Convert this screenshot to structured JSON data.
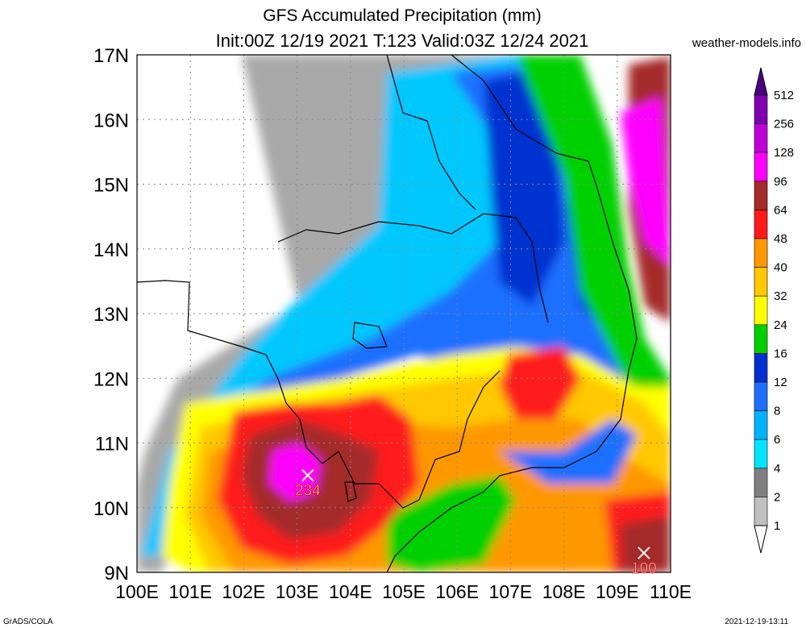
{
  "title_line1": "GFS Accumulated Precipitation (mm)",
  "title_line2": "Init:00Z 12/19 2021 T:123 Valid:03Z 12/24 2021",
  "site": "weather-models.info",
  "footer_left": "GrADS/COLA",
  "footer_right": "2021-12-19-13:11",
  "lat_labels": [
    "17N",
    "16N",
    "15N",
    "14N",
    "13N",
    "12N",
    "11N",
    "10N",
    "9N"
  ],
  "lon_labels": [
    "100E",
    "101E",
    "102E",
    "103E",
    "104E",
    "105E",
    "106E",
    "107E",
    "108E",
    "109E",
    "110E"
  ],
  "colorbar": {
    "levels": [
      "1",
      "2",
      "4",
      "6",
      "8",
      "12",
      "16",
      "24",
      "32",
      "40",
      "48",
      "64",
      "96",
      "128",
      "256",
      "512"
    ],
    "colors": [
      "#ffffff",
      "#c0c0c0",
      "#808080",
      "#00e5ff",
      "#00b3ff",
      "#1f6fff",
      "#0030d0",
      "#00d000",
      "#ffff00",
      "#ffc800",
      "#ff9800",
      "#ff1a1a",
      "#a52a2a",
      "#ff00ff",
      "#c000d8",
      "#8000b0",
      "#4b0082"
    ]
  },
  "markers": [
    {
      "label": "234",
      "lat": 10.5,
      "lon": 103.2
    },
    {
      "label": "100",
      "lat": 9.3,
      "lon": 109.5
    }
  ]
}
